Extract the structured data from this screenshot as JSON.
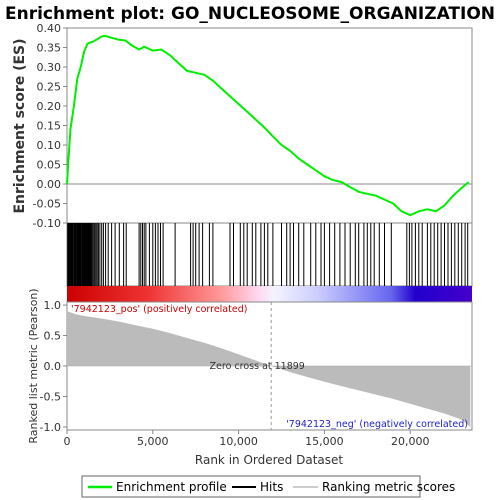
{
  "chart_data": {
    "type": "line",
    "title": "Enrichment plot: GO_NUCLEOSOME_ORGANIZATION",
    "top_panel": {
      "ylabel": "Enrichment score (ES)",
      "ylim": [
        -0.1,
        0.4
      ],
      "yticks": [
        "0.40",
        "0.35",
        "0.30",
        "0.25",
        "0.20",
        "0.15",
        "0.10",
        "0.05",
        "0.00",
        "-0.05",
        "-0.10"
      ],
      "ytick_values": [
        0.4,
        0.35,
        0.3,
        0.25,
        0.2,
        0.15,
        0.1,
        0.05,
        0.0,
        -0.05,
        -0.1
      ],
      "series": [
        {
          "name": "Enrichment profile",
          "color": "#00ee00",
          "x": [
            0,
            80,
            200,
            400,
            600,
            800,
            1000,
            1200,
            1500,
            1800,
            2000,
            2200,
            2600,
            3000,
            3400,
            3800,
            4200,
            4500,
            5000,
            5500,
            6000,
            6500,
            7000,
            7500,
            8000,
            8500,
            9000,
            9500,
            10000,
            10500,
            11000,
            11500,
            12000,
            12500,
            13000,
            13500,
            14000,
            14500,
            15000,
            15500,
            16000,
            16500,
            17000,
            17500,
            18000,
            18500,
            19000,
            19500,
            20000,
            20500,
            21000,
            21500,
            22000,
            22500,
            23000,
            23400
          ],
          "y": [
            0.0,
            0.06,
            0.14,
            0.2,
            0.27,
            0.3,
            0.34,
            0.36,
            0.365,
            0.372,
            0.378,
            0.38,
            0.375,
            0.37,
            0.368,
            0.355,
            0.345,
            0.352,
            0.342,
            0.345,
            0.33,
            0.31,
            0.29,
            0.285,
            0.28,
            0.265,
            0.245,
            0.225,
            0.205,
            0.185,
            0.165,
            0.145,
            0.122,
            0.1,
            0.085,
            0.065,
            0.05,
            0.035,
            0.02,
            0.01,
            0.005,
            -0.008,
            -0.02,
            -0.025,
            -0.03,
            -0.04,
            -0.05,
            -0.07,
            -0.08,
            -0.07,
            -0.065,
            -0.07,
            -0.055,
            -0.03,
            -0.01,
            0.005
          ]
        }
      ]
    },
    "hits_panel": {
      "legend_name": "Hits",
      "hit_ranks": [
        40,
        90,
        130,
        170,
        210,
        260,
        300,
        340,
        390,
        430,
        470,
        510,
        550,
        600,
        640,
        680,
        720,
        760,
        800,
        850,
        890,
        930,
        980,
        1020,
        1070,
        1110,
        1160,
        1200,
        1250,
        1300,
        1340,
        1390,
        1440,
        1500,
        1560,
        1620,
        1690,
        1760,
        1830,
        1920,
        2020,
        2120,
        2250,
        2400,
        2600,
        2800,
        3050,
        3300,
        3450,
        4200,
        4300,
        4400,
        4500,
        4600,
        4800,
        5000,
        5150,
        5300,
        5450,
        5600,
        6300,
        7200,
        7350,
        7500,
        7700,
        7900,
        8300,
        8500,
        9500,
        9700,
        10100,
        10300,
        10500,
        10800,
        11000,
        11300,
        11500,
        11700,
        12000,
        12500,
        12800,
        13000,
        13200,
        13500,
        13800,
        14200,
        14500,
        14800,
        15000,
        15300,
        15600,
        15900,
        16200,
        16500,
        16800,
        17000,
        17300,
        17500,
        17700,
        17900,
        18200,
        18500,
        18900,
        19800,
        19950,
        20100,
        20300,
        20500,
        20700,
        21000,
        21200,
        21400,
        21600,
        21800,
        22000,
        22200,
        22400,
        22600,
        22800,
        23000,
        23200,
        23350
      ]
    },
    "ranking_panel": {
      "ylabel": "Ranked list metric (Pearson)",
      "legend_name": "Ranking metric scores",
      "ylim": [
        -1.05,
        1.05
      ],
      "yticks": [
        "1.0",
        "0.5",
        "0.0",
        "-0.5",
        "-1.0"
      ],
      "ytick_values": [
        1.0,
        0.5,
        0.0,
        -0.5,
        -1.0
      ],
      "x": [
        0,
        500,
        1000,
        2000,
        3000,
        4000,
        5000,
        6000,
        7000,
        8000,
        9000,
        10000,
        11000,
        11899,
        13000,
        14000,
        15000,
        16000,
        17000,
        18000,
        19000,
        20000,
        21000,
        22000,
        22500,
        23000,
        23300,
        23500
      ],
      "y": [
        0.9,
        0.85,
        0.82,
        0.78,
        0.73,
        0.67,
        0.61,
        0.54,
        0.46,
        0.38,
        0.29,
        0.19,
        0.09,
        0.0,
        -0.1,
        -0.18,
        -0.26,
        -0.33,
        -0.4,
        -0.47,
        -0.54,
        -0.62,
        -0.7,
        -0.78,
        -0.83,
        -0.88,
        -0.95,
        -1.0
      ],
      "pos_label": "'7942123_pos' (positively correlated)",
      "neg_label": "'7942123_neg' (negatively correlated)",
      "zero_cross_label": "Zero cross at 11899",
      "zero_cross": 11899
    },
    "xlabel": "Rank in Ordered Dataset",
    "xlim": [
      0,
      23600
    ],
    "xticks": [
      "0",
      "5,000",
      "10,000",
      "15,000",
      "20,000"
    ],
    "xtick_values": [
      0,
      5000,
      10000,
      15000,
      20000
    ],
    "legend": {
      "placement": "bottom",
      "entries": [
        "Enrichment profile",
        "Hits",
        "Ranking metric scores"
      ]
    },
    "colors": {
      "profile": "#00ee00",
      "hits": "#000000",
      "ranking_fill": "#bbbbbb",
      "pos_label": "#cc0000",
      "neg_label": "#2222cc",
      "zero_line": "#888888"
    }
  }
}
